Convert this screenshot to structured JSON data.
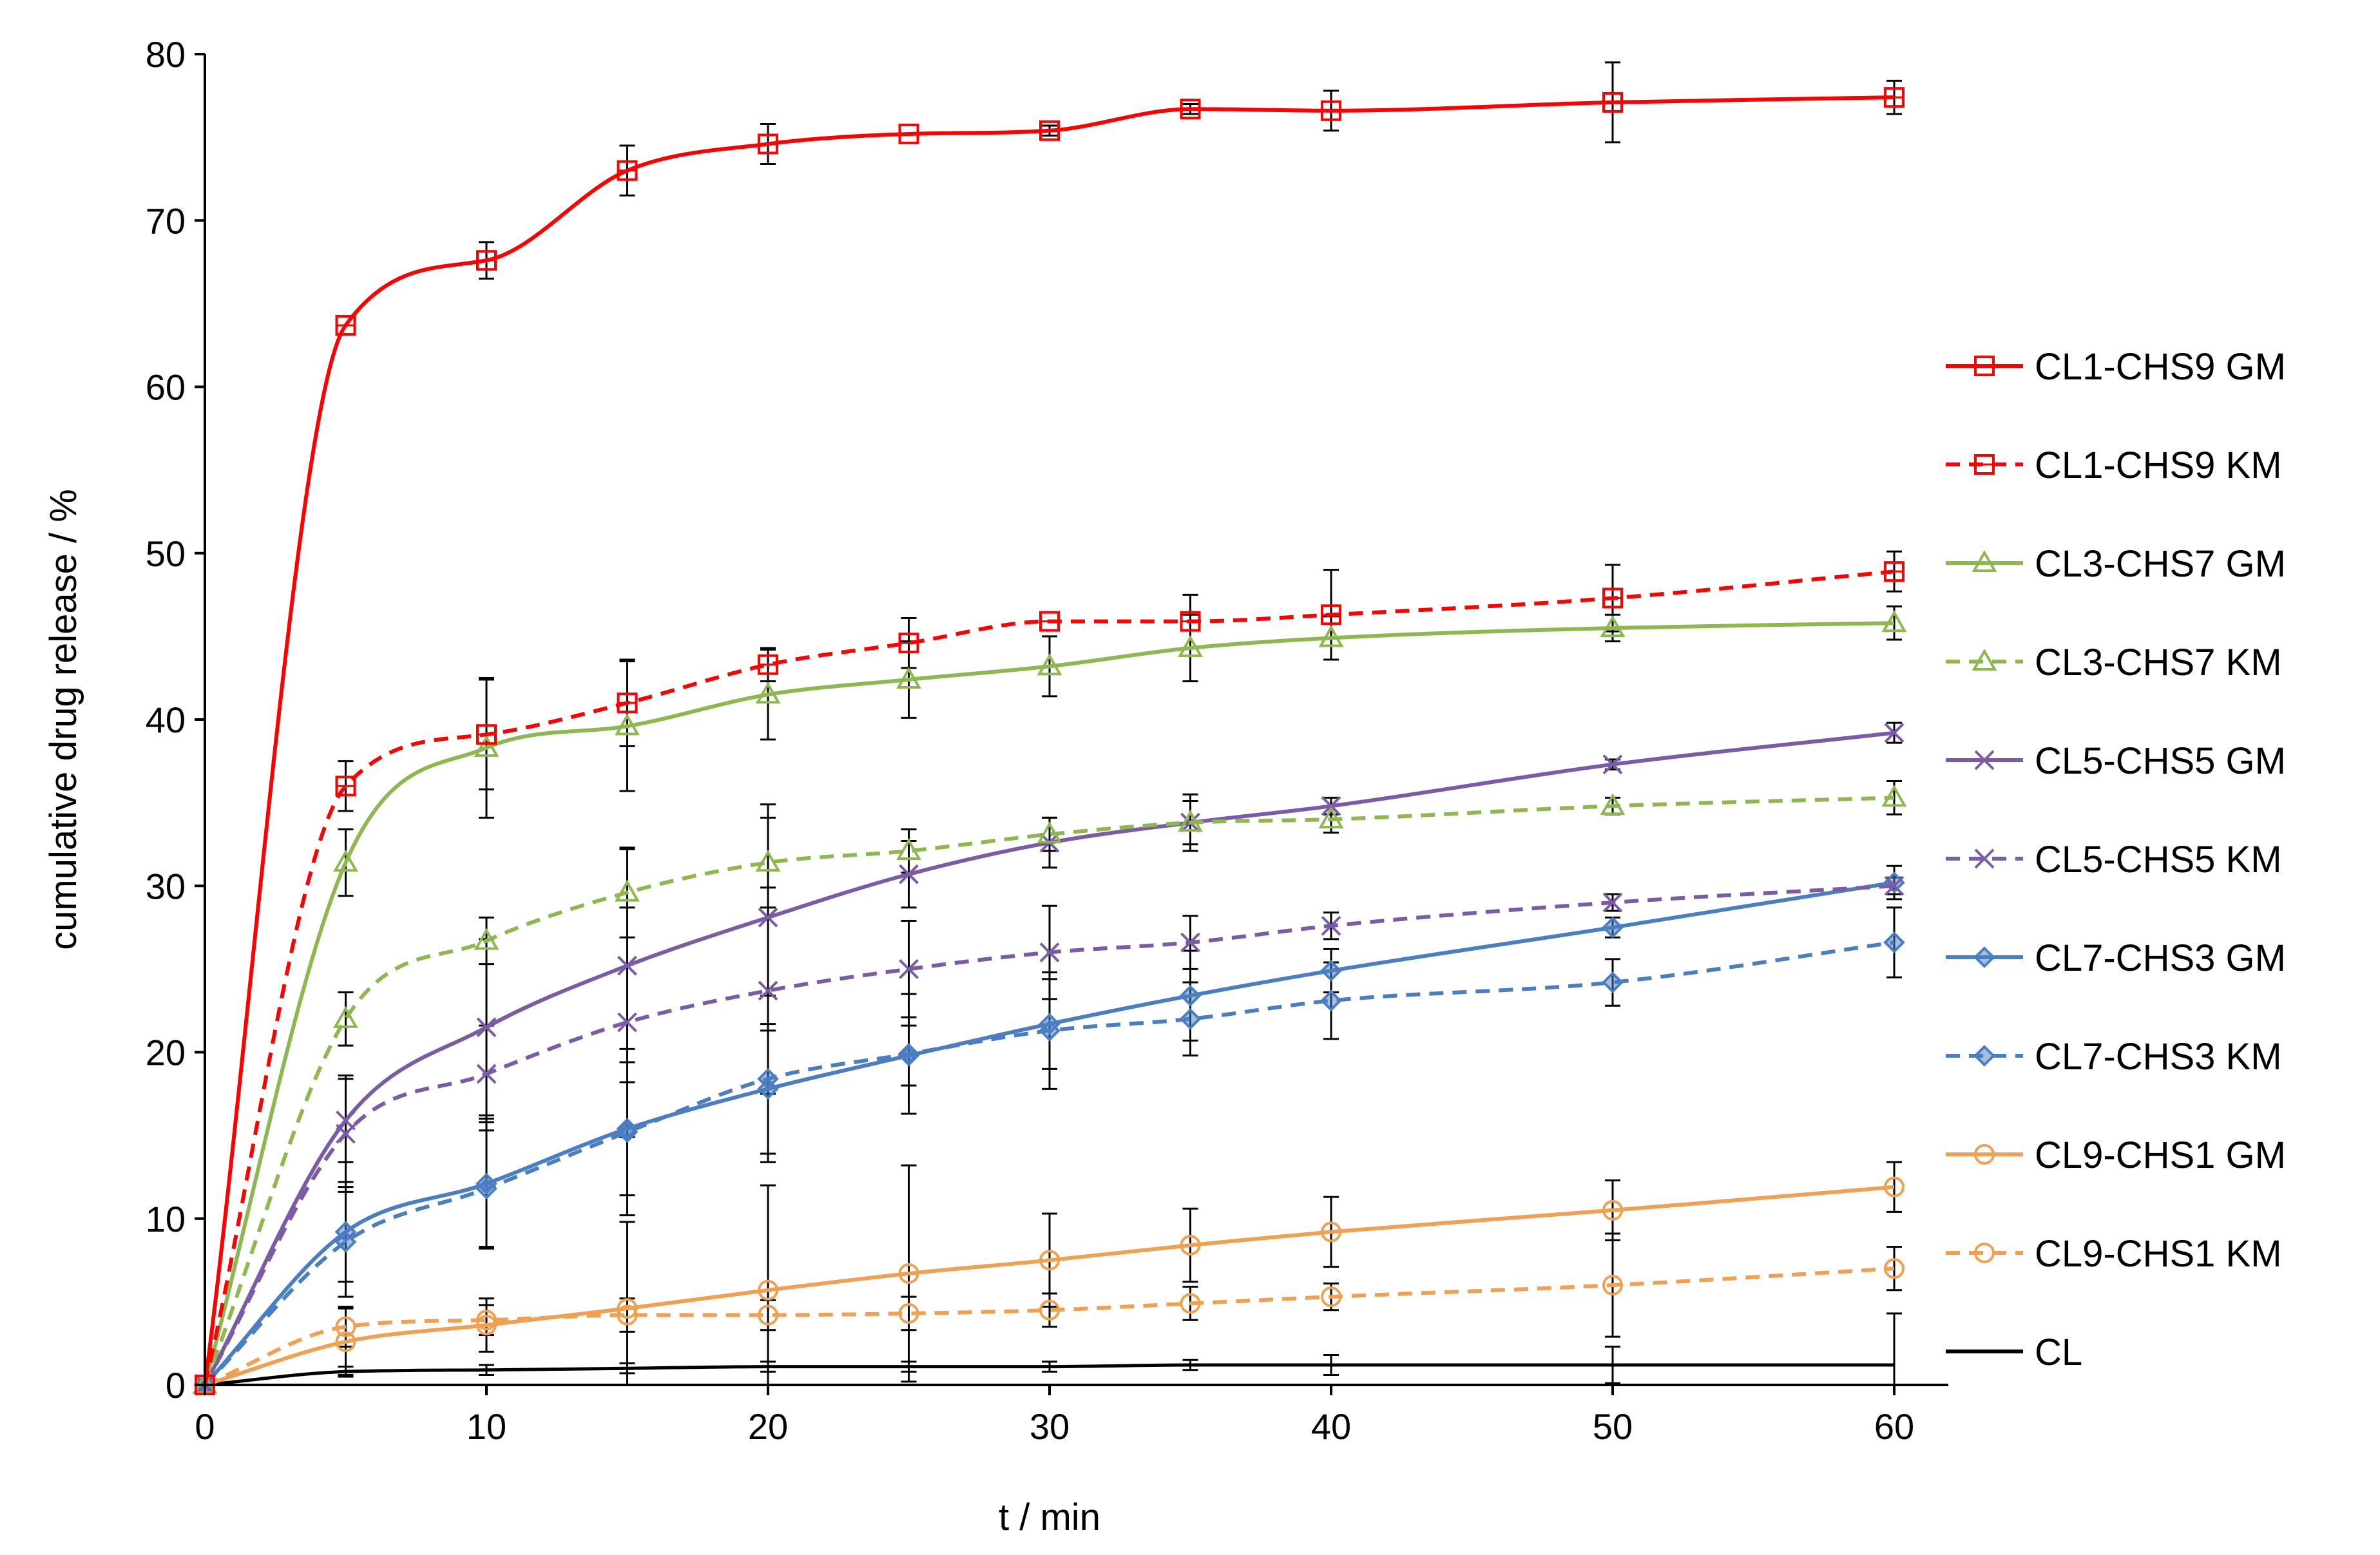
{
  "chart_data": {
    "type": "line",
    "xlabel": "t / min",
    "ylabel": "cumulative drug release / %",
    "xlim": [
      0,
      60
    ],
    "ylim": [
      0,
      80
    ],
    "xticks": [
      0,
      10,
      20,
      30,
      40,
      50,
      60
    ],
    "yticks": [
      0,
      10,
      20,
      30,
      40,
      50,
      60,
      70,
      80
    ],
    "grid": false,
    "legend_position": "right",
    "series": [
      {
        "name": "CL1-CHS9 GM",
        "color": "#ff0000",
        "dash": "solid",
        "marker": "square",
        "x": [
          0,
          5,
          10,
          15,
          20,
          25,
          30,
          35,
          40,
          50,
          60
        ],
        "y": [
          0,
          63.7,
          67.6,
          73.0,
          74.6,
          75.2,
          75.4,
          76.7,
          76.6,
          77.1,
          77.4
        ],
        "err": [
          0,
          0,
          1.1,
          1.5,
          1.2,
          0,
          0.3,
          0.3,
          1.2,
          2.4,
          1.0
        ]
      },
      {
        "name": "CL1-CHS9 KM",
        "color": "#ff0000",
        "dash": "dashed",
        "marker": "square",
        "x": [
          0,
          5,
          10,
          15,
          20,
          25,
          30,
          35,
          40,
          50,
          60
        ],
        "y": [
          0,
          36.0,
          39.1,
          41.0,
          43.3,
          44.6,
          45.9,
          45.9,
          46.3,
          47.3,
          48.9
        ],
        "err": [
          0,
          1.5,
          3.3,
          2.6,
          1.0,
          1.5,
          0,
          1.6,
          2.7,
          2.0,
          1.2
        ]
      },
      {
        "name": "CL3-CHS7 GM",
        "color": "#8db84f",
        "dash": "solid",
        "marker": "triangle",
        "x": [
          0,
          5,
          10,
          15,
          20,
          25,
          30,
          35,
          40,
          50,
          60
        ],
        "y": [
          0,
          31.4,
          38.3,
          39.6,
          41.5,
          42.4,
          43.2,
          44.3,
          44.9,
          45.5,
          45.8
        ],
        "err": [
          0,
          2.0,
          4.2,
          3.9,
          2.7,
          2.3,
          1.8,
          2.0,
          1.3,
          0.8,
          1.0
        ]
      },
      {
        "name": "CL3-CHS7 KM",
        "color": "#8db84f",
        "dash": "dashed",
        "marker": "triangle",
        "x": [
          0,
          5,
          10,
          15,
          20,
          25,
          30,
          35,
          40,
          50,
          60
        ],
        "y": [
          0,
          22.0,
          26.7,
          29.6,
          31.4,
          32.1,
          33.1,
          33.8,
          34.0,
          34.8,
          35.3
        ],
        "err": [
          0,
          1.6,
          1.4,
          2.7,
          2.7,
          1.3,
          1.0,
          1.3,
          0.8,
          0.5,
          1.0
        ]
      },
      {
        "name": "CL5-CHS5 GM",
        "color": "#7b5ba6",
        "dash": "solid",
        "marker": "x",
        "x": [
          0,
          5,
          10,
          15,
          20,
          25,
          30,
          35,
          40,
          50,
          60
        ],
        "y": [
          0,
          15.9,
          21.5,
          25.2,
          28.1,
          30.7,
          32.6,
          33.8,
          34.8,
          37.3,
          39.2
        ],
        "err": [
          0,
          2.5,
          5.3,
          7.0,
          6.8,
          2.0,
          1.5,
          1.7,
          0.5,
          0.3,
          0.6
        ]
      },
      {
        "name": "CL5-CHS5 KM",
        "color": "#7b5ba6",
        "dash": "dashed",
        "marker": "x",
        "x": [
          0,
          5,
          10,
          15,
          20,
          25,
          30,
          35,
          40,
          50,
          60
        ],
        "y": [
          0,
          15.1,
          18.7,
          21.8,
          23.7,
          25.0,
          26.0,
          26.6,
          27.6,
          29.0,
          30.0
        ],
        "err": [
          0,
          3.5,
          2.9,
          6.9,
          6.2,
          2.9,
          2.8,
          1.6,
          0.8,
          0.5,
          0.5
        ]
      },
      {
        "name": "CL7-CHS3 GM",
        "color": "#4a7ec2",
        "dash": "solid",
        "marker": "diamond",
        "x": [
          0,
          5,
          10,
          15,
          20,
          25,
          30,
          35,
          40,
          50,
          60
        ],
        "y": [
          0,
          9.2,
          12.1,
          15.4,
          17.8,
          19.8,
          21.7,
          23.4,
          24.9,
          27.5,
          30.2
        ],
        "err": [
          0,
          3.0,
          3.9,
          4.0,
          3.9,
          1.8,
          2.7,
          2.7,
          1.3,
          0.6,
          1.0
        ]
      },
      {
        "name": "CL7-CHS3 KM",
        "color": "#4a7ec2",
        "dash": "dashed",
        "marker": "diamond",
        "x": [
          0,
          5,
          10,
          15,
          20,
          25,
          30,
          35,
          40,
          50,
          60
        ],
        "y": [
          0,
          8.6,
          11.8,
          15.2,
          18.4,
          19.9,
          21.3,
          22.0,
          23.1,
          24.2,
          26.6
        ],
        "err": [
          0,
          3.3,
          3.5,
          5.0,
          5.0,
          3.6,
          3.5,
          2.2,
          2.3,
          1.4,
          2.1
        ]
      },
      {
        "name": "CL9-CHS1 GM",
        "color": "#f0a050",
        "dash": "solid",
        "marker": "circle",
        "x": [
          0,
          5,
          10,
          15,
          20,
          25,
          30,
          35,
          40,
          50,
          60
        ],
        "y": [
          0,
          2.6,
          3.6,
          4.6,
          5.7,
          6.7,
          7.5,
          8.4,
          9.2,
          10.5,
          11.9
        ],
        "err": [
          0,
          2.0,
          1.6,
          5.2,
          6.3,
          6.5,
          2.8,
          2.2,
          2.1,
          1.8,
          1.5
        ]
      },
      {
        "name": "CL9-CHS1 KM",
        "color": "#f0a050",
        "dash": "dashed",
        "marker": "circle",
        "x": [
          0,
          5,
          10,
          15,
          20,
          25,
          30,
          35,
          40,
          50,
          60
        ],
        "y": [
          0,
          3.5,
          3.9,
          4.2,
          4.2,
          4.3,
          4.5,
          4.9,
          5.3,
          6.0,
          7.0
        ],
        "err": [
          0,
          1.2,
          0.9,
          1.0,
          0.9,
          1.0,
          1.0,
          1.0,
          0.8,
          3.1,
          1.3
        ]
      },
      {
        "name": "CL",
        "color": "#000000",
        "dash": "solid",
        "marker": "none",
        "x": [
          0,
          5,
          10,
          15,
          20,
          25,
          30,
          35,
          40,
          50,
          60
        ],
        "y": [
          0,
          0.8,
          0.9,
          1.0,
          1.1,
          1.1,
          1.1,
          1.2,
          1.2,
          1.2,
          1.2
        ],
        "err": [
          0,
          0.3,
          0.3,
          0.3,
          0.3,
          0.3,
          0.3,
          0.3,
          0.6,
          1.1,
          3.1
        ]
      }
    ]
  }
}
